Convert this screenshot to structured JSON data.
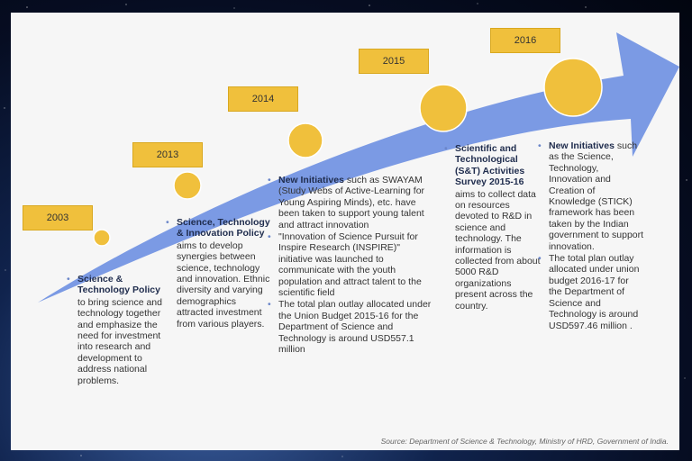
{
  "colors": {
    "arrow": "#7b9ae4",
    "circle_fill": "#f0c03c",
    "year_box": "#f0c03c",
    "heading": "#1f2c4d"
  },
  "years": [
    "2003",
    "2013",
    "2014",
    "2015",
    "2016"
  ],
  "col2003": {
    "heading": "Science & Technology Policy",
    "body": "to bring science and technology together and emphasize the need for investment into research and development to address national problems."
  },
  "col2013": {
    "heading": "Science, Technology & Innovation Policy",
    "body": "aims to develop synergies between science, technology and innovation. Ethnic diversity and varying demographics attracted investment from various players."
  },
  "col2014": {
    "b1_heading": "New Initiatives",
    "b1_body": "such as SWAYAM (Study Webs of Active-Learning for Young Aspiring Minds), etc. have been taken to support young talent and attract innovation",
    "b2_body": "\"Innovation of Science Pursuit for Inspire Research (INSPIRE)\" initiative was launched to communicate with the youth population and attract talent to the scientific field",
    "b3_body": "The total plan outlay allocated under the Union Budget 2015-16 for the Department of Science and Technology is around USD557.1 million"
  },
  "col2015": {
    "heading": "Scientific and Technological (S&T) Activities Survey 2015-16",
    "body": "aims to collect data on resources devoted to R&D in science and technology. The information is collected from about 5000 R&D organizations present across the country."
  },
  "col2016": {
    "b1_heading": "New Initiatives",
    "b1_body": "such as the Science, Technology, Innovation and Creation of Knowledge (STICK) framework has been taken by the Indian government to support innovation.",
    "b2_body": "The total plan outlay allocated under union budget 2016-17 for the Department of Science and Technology is around USD597.46 million ."
  },
  "source": "Source: Department of Science & Technology, Ministry of HRD, Government of India."
}
